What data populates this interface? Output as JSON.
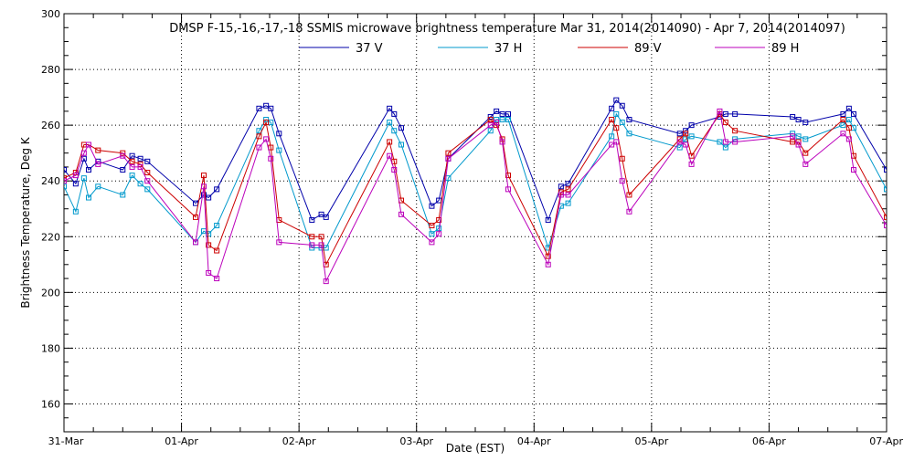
{
  "chart_data": {
    "type": "line",
    "title": "DMSP F-15,-16,-17,-18 SSMIS microwave brightness temperature Mar 31, 2014(2014090) - Apr  7, 2014(2014097)",
    "xlabel": "Date (EST)",
    "ylabel": "Brightness Temperature, Deg K",
    "xlim": [
      0,
      7
    ],
    "ylim": [
      150,
      300
    ],
    "x_unit": "days since 31-Mar 00:00",
    "x_ticks": [
      {
        "value": 0,
        "label": "31-Mar"
      },
      {
        "value": 1,
        "label": "01-Apr"
      },
      {
        "value": 2,
        "label": "02-Apr"
      },
      {
        "value": 3,
        "label": "03-Apr"
      },
      {
        "value": 4,
        "label": "04-Apr"
      },
      {
        "value": 5,
        "label": "05-Apr"
      },
      {
        "value": 6,
        "label": "06-Apr"
      },
      {
        "value": 7,
        "label": "07-Apr"
      }
    ],
    "y_ticks": [
      160,
      180,
      200,
      220,
      240,
      260,
      280,
      300
    ],
    "y_minor_step": 5,
    "x_minor_per_major": 4,
    "grid": true,
    "legend_position": "top-center",
    "series": [
      {
        "name": "37 V",
        "color": "#0000aa",
        "points": [
          [
            0.0,
            244
          ],
          [
            0.1,
            239
          ],
          [
            0.17,
            248
          ],
          [
            0.21,
            244
          ],
          [
            0.29,
            247
          ],
          [
            0.5,
            244
          ],
          [
            0.58,
            249
          ],
          [
            0.65,
            248
          ],
          [
            0.71,
            247
          ],
          [
            1.12,
            232
          ],
          [
            1.19,
            235
          ],
          [
            1.23,
            234
          ],
          [
            1.3,
            237
          ],
          [
            1.66,
            266
          ],
          [
            1.72,
            267
          ],
          [
            1.76,
            266
          ],
          [
            1.83,
            257
          ],
          [
            2.11,
            226
          ],
          [
            2.19,
            228
          ],
          [
            2.23,
            227
          ],
          [
            2.77,
            266
          ],
          [
            2.81,
            264
          ],
          [
            2.87,
            259
          ],
          [
            3.13,
            231
          ],
          [
            3.19,
            233
          ],
          [
            3.27,
            248
          ],
          [
            3.63,
            263
          ],
          [
            3.68,
            265
          ],
          [
            3.73,
            264
          ],
          [
            3.78,
            264
          ],
          [
            4.12,
            226
          ],
          [
            4.23,
            238
          ],
          [
            4.29,
            239
          ],
          [
            4.66,
            266
          ],
          [
            4.7,
            269
          ],
          [
            4.75,
            267
          ],
          [
            4.81,
            262
          ],
          [
            5.24,
            257
          ],
          [
            5.29,
            258
          ],
          [
            5.34,
            260
          ],
          [
            5.58,
            263
          ],
          [
            5.63,
            264
          ],
          [
            5.71,
            264
          ],
          [
            6.2,
            263
          ],
          [
            6.25,
            262
          ],
          [
            6.31,
            261
          ],
          [
            6.63,
            264
          ],
          [
            6.68,
            266
          ],
          [
            6.72,
            264
          ],
          [
            7.0,
            244
          ]
        ]
      },
      {
        "name": "37 H",
        "color": "#0099cc",
        "points": [
          [
            0.0,
            238
          ],
          [
            0.1,
            229
          ],
          [
            0.17,
            241
          ],
          [
            0.21,
            234
          ],
          [
            0.29,
            238
          ],
          [
            0.5,
            235
          ],
          [
            0.58,
            242
          ],
          [
            0.65,
            239
          ],
          [
            0.71,
            237
          ],
          [
            1.12,
            218
          ],
          [
            1.19,
            222
          ],
          [
            1.23,
            221
          ],
          [
            1.3,
            224
          ],
          [
            1.66,
            258
          ],
          [
            1.72,
            262
          ],
          [
            1.76,
            261
          ],
          [
            1.83,
            251
          ],
          [
            2.11,
            216
          ],
          [
            2.19,
            216
          ],
          [
            2.23,
            216
          ],
          [
            2.77,
            261
          ],
          [
            2.81,
            258
          ],
          [
            2.87,
            253
          ],
          [
            3.13,
            221
          ],
          [
            3.19,
            223
          ],
          [
            3.27,
            241
          ],
          [
            3.63,
            258
          ],
          [
            3.68,
            262
          ],
          [
            3.73,
            262
          ],
          [
            3.78,
            262
          ],
          [
            4.12,
            216
          ],
          [
            4.23,
            231
          ],
          [
            4.29,
            232
          ],
          [
            4.66,
            256
          ],
          [
            4.7,
            264
          ],
          [
            4.75,
            261
          ],
          [
            4.81,
            257
          ],
          [
            5.24,
            252
          ],
          [
            5.29,
            255
          ],
          [
            5.34,
            256
          ],
          [
            5.58,
            254
          ],
          [
            5.63,
            252
          ],
          [
            5.71,
            255
          ],
          [
            6.2,
            257
          ],
          [
            6.25,
            256
          ],
          [
            6.31,
            255
          ],
          [
            6.63,
            260
          ],
          [
            6.68,
            262
          ],
          [
            6.72,
            259
          ],
          [
            7.0,
            237
          ]
        ]
      },
      {
        "name": "89 V",
        "color": "#cc0000",
        "points": [
          [
            0.0,
            241
          ],
          [
            0.1,
            243
          ],
          [
            0.17,
            253
          ],
          [
            0.21,
            253
          ],
          [
            0.29,
            251
          ],
          [
            0.5,
            250
          ],
          [
            0.58,
            247
          ],
          [
            0.65,
            246
          ],
          [
            0.71,
            243
          ],
          [
            1.12,
            227
          ],
          [
            1.19,
            242
          ],
          [
            1.23,
            217
          ],
          [
            1.3,
            215
          ],
          [
            1.66,
            256
          ],
          [
            1.72,
            261
          ],
          [
            1.76,
            252
          ],
          [
            1.83,
            226
          ],
          [
            2.11,
            220
          ],
          [
            2.19,
            220
          ],
          [
            2.23,
            210
          ],
          [
            2.77,
            254
          ],
          [
            2.81,
            247
          ],
          [
            2.87,
            233
          ],
          [
            3.13,
            224
          ],
          [
            3.19,
            226
          ],
          [
            3.27,
            250
          ],
          [
            3.63,
            262
          ],
          [
            3.68,
            260
          ],
          [
            3.73,
            255
          ],
          [
            3.78,
            242
          ],
          [
            4.12,
            213
          ],
          [
            4.23,
            236
          ],
          [
            4.29,
            237
          ],
          [
            4.66,
            262
          ],
          [
            4.7,
            259
          ],
          [
            4.75,
            248
          ],
          [
            4.81,
            235
          ],
          [
            5.24,
            255
          ],
          [
            5.29,
            257
          ],
          [
            5.34,
            249
          ],
          [
            5.58,
            264
          ],
          [
            5.63,
            261
          ],
          [
            5.71,
            258
          ],
          [
            6.2,
            254
          ],
          [
            6.25,
            254
          ],
          [
            6.31,
            250
          ],
          [
            6.63,
            262
          ],
          [
            6.68,
            259
          ],
          [
            6.72,
            249
          ],
          [
            7.0,
            227
          ]
        ]
      },
      {
        "name": "89 H",
        "color": "#bb00bb",
        "points": [
          [
            0.0,
            240
          ],
          [
            0.1,
            242
          ],
          [
            0.17,
            250
          ],
          [
            0.21,
            253
          ],
          [
            0.29,
            246
          ],
          [
            0.5,
            249
          ],
          [
            0.58,
            245
          ],
          [
            0.65,
            245
          ],
          [
            0.71,
            240
          ],
          [
            1.12,
            218
          ],
          [
            1.19,
            238
          ],
          [
            1.23,
            207
          ],
          [
            1.3,
            205
          ],
          [
            1.66,
            252
          ],
          [
            1.72,
            255
          ],
          [
            1.76,
            248
          ],
          [
            1.83,
            218
          ],
          [
            2.11,
            217
          ],
          [
            2.19,
            217
          ],
          [
            2.23,
            204
          ],
          [
            2.77,
            249
          ],
          [
            2.81,
            244
          ],
          [
            2.87,
            228
          ],
          [
            3.13,
            218
          ],
          [
            3.19,
            221
          ],
          [
            3.27,
            248
          ],
          [
            3.63,
            260
          ],
          [
            3.68,
            261
          ],
          [
            3.73,
            254
          ],
          [
            3.78,
            237
          ],
          [
            4.12,
            210
          ],
          [
            4.23,
            235
          ],
          [
            4.29,
            235
          ],
          [
            4.66,
            253
          ],
          [
            4.7,
            254
          ],
          [
            4.75,
            240
          ],
          [
            4.81,
            229
          ],
          [
            5.24,
            254
          ],
          [
            5.29,
            253
          ],
          [
            5.34,
            246
          ],
          [
            5.58,
            265
          ],
          [
            5.63,
            254
          ],
          [
            5.71,
            254
          ],
          [
            6.2,
            256
          ],
          [
            6.25,
            253
          ],
          [
            6.31,
            246
          ],
          [
            6.63,
            257
          ],
          [
            6.68,
            255
          ],
          [
            6.72,
            244
          ],
          [
            7.0,
            224
          ]
        ]
      }
    ]
  }
}
